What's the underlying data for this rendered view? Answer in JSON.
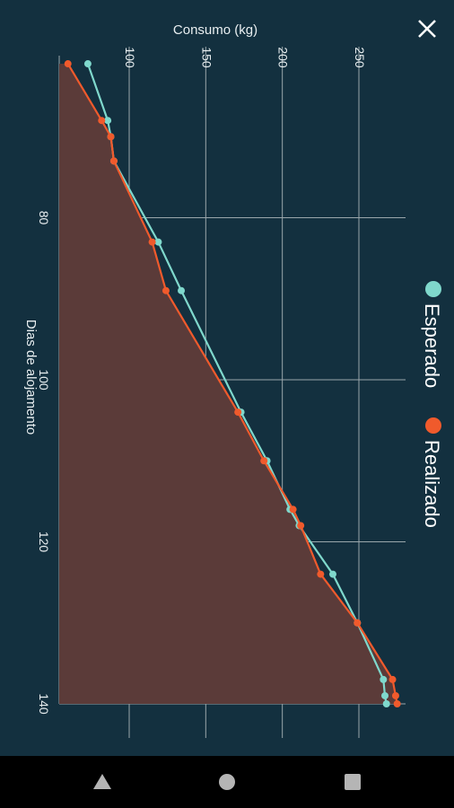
{
  "close_icon": "close-icon",
  "colors": {
    "background": "#13303f",
    "expected": "#7fd8cc",
    "actual": "#f05a2c",
    "area": "#5b3b39",
    "grid": "#9aa6ab"
  },
  "navbar": {
    "back_icon": "triangle-back-icon",
    "home_icon": "circle-home-icon",
    "recents_icon": "square-recents-icon"
  },
  "chart_data": {
    "type": "line",
    "orientation": "rotated-90-clockwise",
    "xlabel": "Dias de alojamento",
    "ylabel": "Consumo (kg)",
    "xlim": [
      60,
      140
    ],
    "ylim": [
      55,
      280
    ],
    "x_ticks": [
      "80",
      "100",
      "120",
      "140"
    ],
    "y_ticks": [
      "100",
      "150",
      "200",
      "250"
    ],
    "grid": true,
    "legend": "right",
    "series": [
      {
        "name": "Esperado",
        "color": "#7fd8cc",
        "points": [
          [
            61,
            73
          ],
          [
            68,
            86
          ],
          [
            70,
            88
          ],
          [
            73,
            90
          ],
          [
            83,
            119
          ],
          [
            89,
            134
          ],
          [
            104,
            173
          ],
          [
            110,
            190
          ],
          [
            116,
            205
          ],
          [
            118,
            211
          ],
          [
            124,
            233
          ],
          [
            130,
            249
          ],
          [
            137,
            266
          ],
          [
            139,
            267
          ],
          [
            140,
            268
          ]
        ]
      },
      {
        "name": "Realizado",
        "color": "#f05a2c",
        "points": [
          [
            61,
            60
          ],
          [
            68,
            82
          ],
          [
            70,
            88
          ],
          [
            73,
            90
          ],
          [
            83,
            115
          ],
          [
            89,
            124
          ],
          [
            104,
            171
          ],
          [
            110,
            188
          ],
          [
            116,
            207
          ],
          [
            118,
            212
          ],
          [
            124,
            225
          ],
          [
            130,
            249
          ],
          [
            137,
            272
          ],
          [
            139,
            274
          ],
          [
            140,
            275
          ]
        ]
      }
    ]
  }
}
